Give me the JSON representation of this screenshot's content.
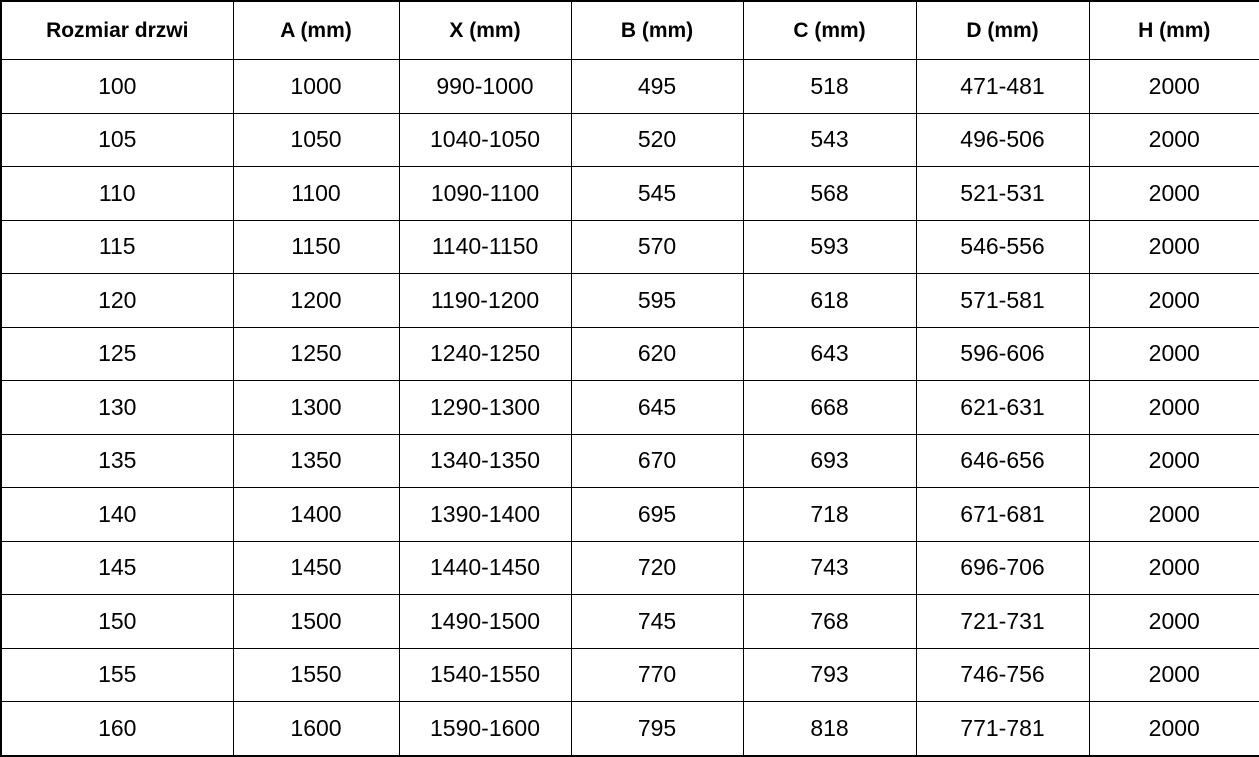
{
  "colors": {
    "background": "#ffffff",
    "border": "#000000",
    "text": "#000000"
  },
  "table": {
    "headers": [
      "Rozmiar drzwi",
      "A (mm)",
      "X (mm)",
      "B (mm)",
      "C (mm)",
      "D (mm)",
      "H (mm)"
    ],
    "rows": [
      [
        "100",
        "1000",
        "990-1000",
        "495",
        "518",
        "471-481",
        "2000"
      ],
      [
        "105",
        "1050",
        "1040-1050",
        "520",
        "543",
        "496-506",
        "2000"
      ],
      [
        "110",
        "1100",
        "1090-1100",
        "545",
        "568",
        "521-531",
        "2000"
      ],
      [
        "115",
        "1150",
        "1140-1150",
        "570",
        "593",
        "546-556",
        "2000"
      ],
      [
        "120",
        "1200",
        "1190-1200",
        "595",
        "618",
        "571-581",
        "2000"
      ],
      [
        "125",
        "1250",
        "1240-1250",
        "620",
        "643",
        "596-606",
        "2000"
      ],
      [
        "130",
        "1300",
        "1290-1300",
        "645",
        "668",
        "621-631",
        "2000"
      ],
      [
        "135",
        "1350",
        "1340-1350",
        "670",
        "693",
        "646-656",
        "2000"
      ],
      [
        "140",
        "1400",
        "1390-1400",
        "695",
        "718",
        "671-681",
        "2000"
      ],
      [
        "145",
        "1450",
        "1440-1450",
        "720",
        "743",
        "696-706",
        "2000"
      ],
      [
        "150",
        "1500",
        "1490-1500",
        "745",
        "768",
        "721-731",
        "2000"
      ],
      [
        "155",
        "1550",
        "1540-1550",
        "770",
        "793",
        "746-756",
        "2000"
      ],
      [
        "160",
        "1600",
        "1590-1600",
        "795",
        "818",
        "771-781",
        "2000"
      ]
    ]
  }
}
